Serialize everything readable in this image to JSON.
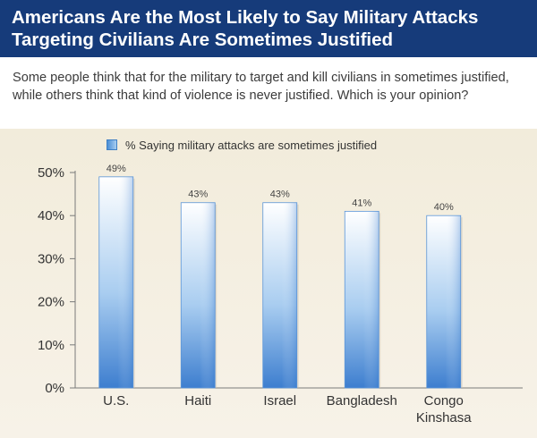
{
  "header": {
    "title": "Americans Are the Most Likely to Say Military Attacks\nTargeting Civilians Are Sometimes Justified"
  },
  "question": {
    "text": "Some people think that for the military to target and kill civilians in sometimes justified, while others think that kind of violence is never justified. Which is your opinion?"
  },
  "colors": {
    "header_bg": "#163b7a",
    "bar_dark": "#3d7ecf",
    "bar_light": "#ffffff",
    "axis": "#7a7a7a"
  },
  "chart_data": {
    "type": "bar",
    "categories": [
      "U.S.",
      "Haiti",
      "Israel",
      "Bangladesh",
      "Congo Kinshasa"
    ],
    "category_lines": [
      [
        "U.S."
      ],
      [
        "Haiti"
      ],
      [
        "Israel"
      ],
      [
        "Bangladesh"
      ],
      [
        "Congo",
        "Kinshasa"
      ]
    ],
    "series": [
      {
        "name": "% Saying military attacks are sometimes justified",
        "values": [
          49,
          43,
          43,
          41,
          40
        ]
      }
    ],
    "value_labels": [
      "49%",
      "43%",
      "43%",
      "41%",
      "40%"
    ],
    "ylim": [
      0,
      50
    ],
    "yticks": [
      0,
      10,
      20,
      30,
      40,
      50
    ],
    "ytick_labels": [
      "0%",
      "10%",
      "20%",
      "30%",
      "40%",
      "50%"
    ],
    "legend_position": "top-left",
    "grid": false
  }
}
